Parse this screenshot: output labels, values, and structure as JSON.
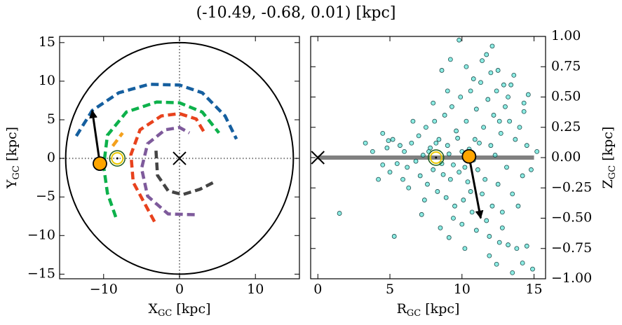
{
  "title": "(-10.49, -0.68, 0.01) [kpc]",
  "chart_data": [
    {
      "type": "line",
      "xlabel": [
        "X",
        "GC",
        " [kpc]"
      ],
      "ylabel": [
        "Y",
        "GC",
        " [kpc]"
      ],
      "xlim": [
        -15.8,
        15.8
      ],
      "ylim": [
        -15.6,
        15.8
      ],
      "xticks": [
        {
          "value": -10,
          "label": "−10"
        },
        0,
        10
      ],
      "yticks": [
        {
          "value": -15,
          "label": "−15"
        },
        {
          "value": -10,
          "label": "−10"
        },
        {
          "value": -5,
          "label": "−5"
        },
        0,
        5,
        10,
        15
      ],
      "yaxis_side": "left",
      "zero_lines": true,
      "circle_radius": 15,
      "series": [
        {
          "color": "#155f9f",
          "x": [
            -13.6,
            -11.5,
            -8,
            -4,
            0,
            3,
            6,
            7.5
          ],
          "values": [
            2.9,
            6.2,
            8.5,
            9.6,
            9.5,
            8.5,
            5.5,
            2.5
          ]
        },
        {
          "color": "#0db14b",
          "x": [
            -8.4,
            -9.5,
            -10,
            -9.5,
            -7,
            -3,
            0,
            3,
            5.2
          ],
          "values": [
            -7.6,
            -4.5,
            -1,
            3,
            6,
            7.3,
            7.2,
            6,
            3.3
          ]
        },
        {
          "color": "#f4a11d",
          "x": [
            -8.8,
            -7.5
          ],
          "values": [
            1.6,
            3.3
          ]
        },
        {
          "color": "#e8421d",
          "x": [
            -3.3,
            -6.1,
            -6.4,
            -5.2,
            -2.4,
            0,
            2.2,
            3.3
          ],
          "values": [
            -8.2,
            -3.1,
            0.5,
            3.7,
            5.5,
            5.8,
            5.1,
            3.3
          ]
        },
        {
          "color": "#7e5a9b",
          "x": [
            2.0,
            -1.5,
            -4.2,
            -5,
            -4.2,
            -1.9,
            0,
            1.3
          ],
          "values": [
            -7.3,
            -7.2,
            -4.9,
            -1.3,
            1.9,
            3.7,
            4,
            3.3
          ]
        },
        {
          "color": "#444444",
          "x": [
            -3.1,
            -2.9,
            -1.5,
            0.4,
            2.7,
            4.5
          ],
          "values": [
            1,
            -2.2,
            -4.2,
            -4.7,
            -4,
            -3.1
          ]
        }
      ],
      "center": [
        0,
        0
      ],
      "sun": [
        -8.2,
        0
      ],
      "star": [
        -10.49,
        -0.68
      ],
      "arrow": {
        "x": [
          -10.49,
          -11.5
        ],
        "y": [
          -0.68,
          6.2
        ]
      }
    },
    {
      "type": "scatter",
      "xlabel": [
        "R",
        "GC",
        " [kpc]"
      ],
      "ylabel": [
        "Z",
        "GC",
        " [kpc]"
      ],
      "xlim": [
        -0.5,
        15.8
      ],
      "ylim": [
        -1,
        1
      ],
      "xticks": [
        0,
        5,
        10,
        15
      ],
      "yticks": [
        {
          "value": -1,
          "label": "−1.00"
        },
        {
          "value": -0.75,
          "label": "−0.75"
        },
        {
          "value": -0.5,
          "label": "−0.50"
        },
        {
          "value": -0.25,
          "label": "−0.25"
        },
        {
          "value": 0,
          "label": "0.00"
        },
        {
          "value": 0.25,
          "label": "0.25"
        },
        {
          "value": 0.5,
          "label": "0.50"
        },
        {
          "value": 0.75,
          "label": "0.75"
        },
        {
          "value": 1,
          "label": "1.00"
        }
      ],
      "yaxis_side": "right",
      "plane": {
        "x": [
          0,
          15
        ],
        "y": [
          0,
          0
        ]
      },
      "series": [
        {
          "color": "#40e0d0",
          "x": [
            6.0,
            6.2,
            6.5,
            6.8,
            7.0,
            7.1,
            7.3,
            7.5,
            7.6,
            7.8,
            8.0,
            8.1,
            8.3,
            8.4,
            8.6,
            8.8,
            8.9,
            9.0,
            9.2,
            9.3,
            9.5,
            9.6,
            9.8,
            9.9,
            10.0,
            10.1,
            10.3,
            10.4,
            10.6,
            10.7,
            10.9,
            11.0,
            11.1,
            11.3,
            11.4,
            11.5,
            11.7,
            11.8,
            12.0,
            12.1,
            12.2,
            12.4,
            12.5,
            12.7,
            12.8,
            13.0,
            13.1,
            13.3,
            13.5,
            13.7,
            14.0,
            14.2,
            14.5,
            4.8,
            5.0,
            5.2,
            5.5,
            5.7,
            5.9,
            4.5,
            4.9,
            7.7,
            8.2,
            8.7,
            9.1,
            9.4,
            9.7,
            10.2,
            10.5,
            10.8,
            11.2,
            11.6,
            12.3,
            12.6,
            12.9,
            13.2,
            12.0,
            11.4,
            10.8,
            9.0,
            8.0,
            7.4,
            6.6,
            6.3,
            10.6,
            11.9,
            12.6,
            10.0,
            9.4,
            13.9,
            14.3,
            13.4,
            1.5,
            5.3,
            9.8,
            12.1,
            11.7,
            8.6,
            10.3,
            9.2,
            12.5,
            13.6,
            14.6,
            14.3,
            13.2,
            12.8,
            13.8,
            14.5,
            14.9,
            14.2,
            12.4,
            11.9,
            13.5,
            7.2,
            8.5,
            9.1,
            11.0,
            10.2,
            3.3,
            4.2,
            3.8,
            4.5,
            14.8,
            15.2
          ],
          "values": [
            0.05,
            -0.08,
            0.12,
            -0.03,
            0.18,
            -0.15,
            0.02,
            0.25,
            -0.22,
            0.08,
            -0.1,
            0.3,
            -0.28,
            0.15,
            -0.05,
            0.35,
            -0.33,
            0.1,
            -0.18,
            0.42,
            -0.4,
            0.22,
            -0.12,
            0.5,
            0.05,
            -0.35,
            0.3,
            -0.2,
            0.55,
            -0.45,
            0.15,
            0.4,
            -0.1,
            0.62,
            -0.3,
            0.25,
            -0.52,
            0.48,
            0.1,
            -0.4,
            0.35,
            0.55,
            -0.22,
            0.2,
            -0.45,
            0.42,
            -0.08,
            0.3,
            -0.3,
            0.15,
            0.25,
            -0.15,
            0.1,
            0.08,
            -0.12,
            0.15,
            -0.05,
            0.1,
            -0.18,
            -0.06,
            0.14,
            0.05,
            0.12,
            -0.14,
            0.03,
            -0.06,
            0.16,
            -0.08,
            0.07,
            -0.02,
            0.12,
            -0.18,
            0.02,
            0.3,
            0.6,
            0.5,
            0.7,
            0.8,
            0.65,
            0.55,
            0.45,
            -0.35,
            0.3,
            -0.25,
            -0.28,
            -0.65,
            -0.7,
            -0.55,
            -0.5,
            -0.4,
            0.45,
            0.6,
            -0.46,
            -0.65,
            0.97,
            0.92,
            0.85,
            0.72,
            0.75,
            0.81,
            0.72,
            0.68,
            0.52,
            0.38,
            -0.72,
            -0.58,
            -0.75,
            -0.73,
            -0.92,
            -0.87,
            -0.88,
            -0.81,
            -0.95,
            -0.47,
            -0.58,
            -0.66,
            -0.6,
            -0.75,
            0.12,
            -0.18,
            0.05,
            0.2,
            -0.1,
            0.05
          ]
        }
      ],
      "center": [
        0,
        0
      ],
      "sun": [
        8.2,
        0
      ],
      "star": [
        10.49,
        0.01
      ],
      "arrow": {
        "x": [
          10.49,
          11.3
        ],
        "y": [
          0.01,
          -0.5
        ]
      }
    }
  ]
}
